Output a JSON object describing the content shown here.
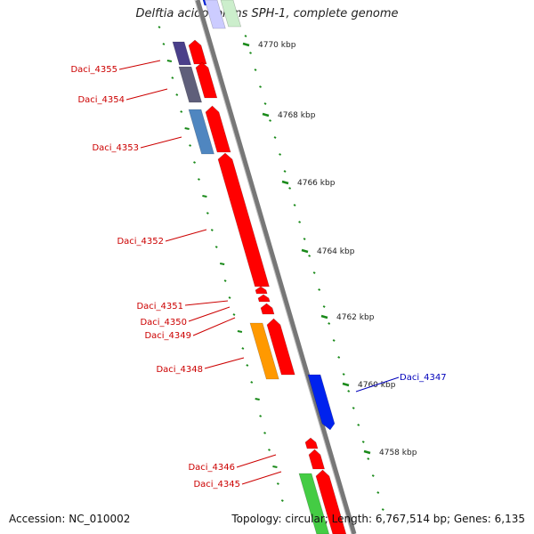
{
  "title": "Delftia acidovorans SPH-1, complete genome",
  "footer": {
    "accession": "Accession: NC_010002",
    "summary": "Topology: circular; Length: 6,767,514 bp; Genes: 6,135"
  },
  "colors": {
    "red": "#ff0000",
    "blue": "#0022ee",
    "green": "#44cc44",
    "orange": "#ff9900",
    "steel_blue": "#4f86c0",
    "slate": "#5f5f7a",
    "navy_purple": "#4a3f8a",
    "tick_green": "#1a8a1a",
    "label_red": "#cc0000",
    "label_blue": "#0000bb"
  },
  "genes": [
    {
      "name": "Daci_4355"
    },
    {
      "name": "Daci_4354"
    },
    {
      "name": "Daci_4353"
    },
    {
      "name": "Daci_4352"
    },
    {
      "name": "Daci_4351"
    },
    {
      "name": "Daci_4350"
    },
    {
      "name": "Daci_4349"
    },
    {
      "name": "Daci_4348"
    },
    {
      "name": "Daci_4347"
    },
    {
      "name": "Daci_4346"
    },
    {
      "name": "Daci_4345"
    }
  ],
  "scale_labels": [
    "4770 kbp",
    "4768 kbp",
    "4766 kbp",
    "4764 kbp",
    "4762 kbp",
    "4760 kbp",
    "4758 kbp"
  ]
}
